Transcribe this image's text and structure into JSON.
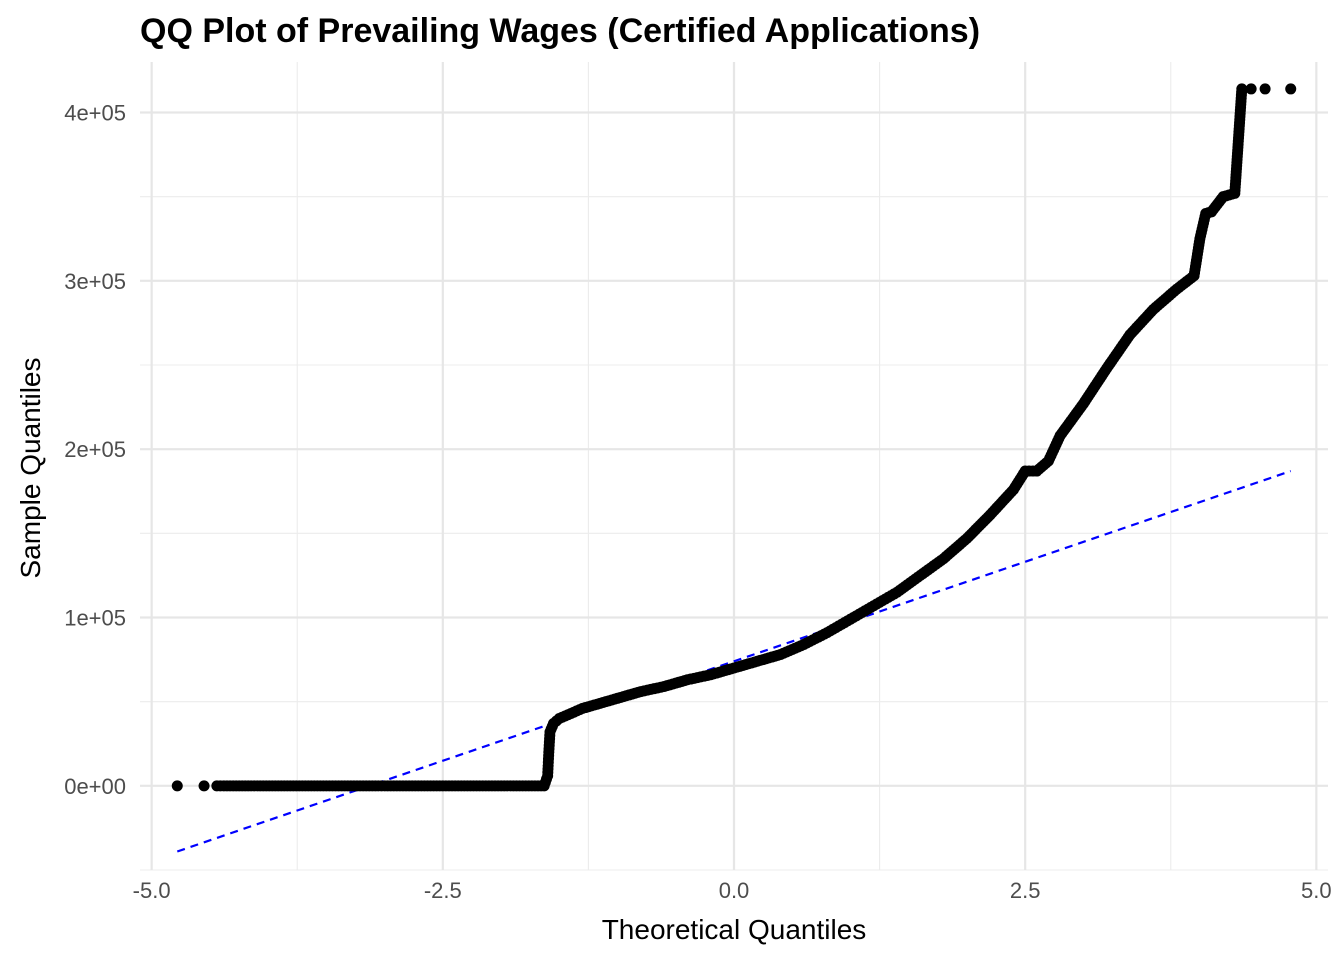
{
  "chart_data": {
    "type": "scatter",
    "title": "QQ Plot of Prevailing Wages (Certified Applications)",
    "xlabel": "Theoretical Quantiles",
    "ylabel": "Sample Quantiles",
    "xlim": [
      -5.1,
      5.1
    ],
    "ylim": [
      -50000,
      430000
    ],
    "x_ticks": [
      -5.0,
      -2.5,
      0.0,
      2.5,
      5.0
    ],
    "x_tick_labels": [
      "-5.0",
      "-2.5",
      "0.0",
      "2.5",
      "5.0"
    ],
    "y_ticks": [
      0,
      100000,
      200000,
      300000,
      400000
    ],
    "y_tick_labels": [
      "0e+00",
      "1e+05",
      "2e+05",
      "3e+05",
      "4e+05"
    ],
    "grid": true,
    "point_color": "#000000",
    "reference_line": {
      "color": "#0000ff",
      "style": "dashed",
      "from": [
        -4.78,
        -39000
      ],
      "to": [
        4.78,
        187000
      ]
    },
    "sample_quantiles": [
      [
        -4.78,
        0
      ],
      [
        -4.55,
        0
      ],
      [
        -4.44,
        0
      ],
      [
        -4.38,
        0
      ],
      [
        -4.3,
        0
      ],
      [
        -3.5,
        0
      ],
      [
        -2.5,
        0
      ],
      [
        -1.63,
        0
      ],
      [
        -1.6,
        6000
      ],
      [
        -1.59,
        20000
      ],
      [
        -1.58,
        32000
      ],
      [
        -1.55,
        37000
      ],
      [
        -1.5,
        40000
      ],
      [
        -1.4,
        43000
      ],
      [
        -1.3,
        46000
      ],
      [
        -1.2,
        48000
      ],
      [
        -1.0,
        52000
      ],
      [
        -0.8,
        56000
      ],
      [
        -0.6,
        59000
      ],
      [
        -0.4,
        63000
      ],
      [
        -0.2,
        66000
      ],
      [
        0.0,
        70000
      ],
      [
        0.2,
        74000
      ],
      [
        0.4,
        78000
      ],
      [
        0.6,
        84000
      ],
      [
        0.8,
        91000
      ],
      [
        1.0,
        99000
      ],
      [
        1.2,
        107000
      ],
      [
        1.4,
        115000
      ],
      [
        1.6,
        125000
      ],
      [
        1.8,
        135000
      ],
      [
        2.0,
        147000
      ],
      [
        2.2,
        161000
      ],
      [
        2.4,
        176000
      ],
      [
        2.5,
        187000
      ],
      [
        2.6,
        187000
      ],
      [
        2.7,
        193000
      ],
      [
        2.8,
        208000
      ],
      [
        3.0,
        227000
      ],
      [
        3.2,
        248000
      ],
      [
        3.4,
        268000
      ],
      [
        3.6,
        283000
      ],
      [
        3.8,
        295000
      ],
      [
        3.95,
        303000
      ],
      [
        4.0,
        325000
      ],
      [
        4.05,
        340000
      ],
      [
        4.1,
        341000
      ],
      [
        4.2,
        350000
      ],
      [
        4.3,
        352000
      ],
      [
        4.36,
        414000
      ],
      [
        4.44,
        414000
      ],
      [
        4.56,
        414000
      ],
      [
        4.78,
        414000
      ]
    ]
  }
}
